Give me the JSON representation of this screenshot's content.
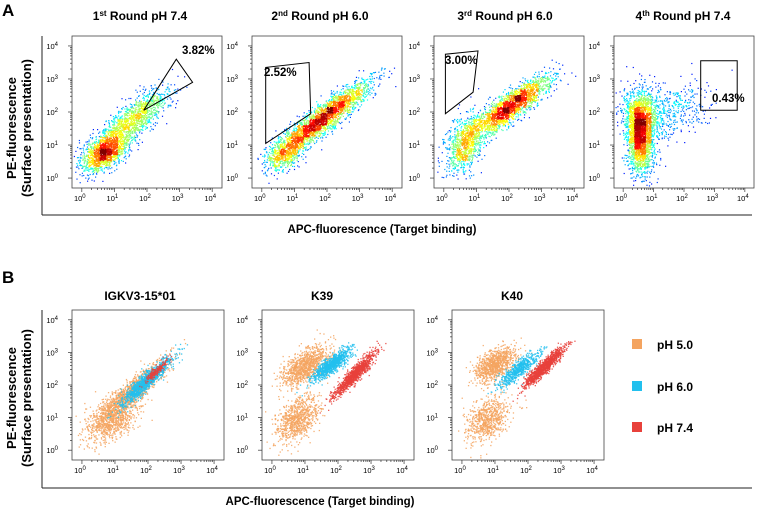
{
  "panels": [
    {
      "letter": "A"
    },
    {
      "letter": "B"
    }
  ],
  "tick_labels": [
    {
      "base": "10",
      "exp": "0"
    },
    {
      "base": "10",
      "exp": "1"
    },
    {
      "base": "10",
      "exp": "2"
    },
    {
      "base": "10",
      "exp": "3"
    },
    {
      "base": "10",
      "exp": "4"
    }
  ],
  "chart_data": [
    {
      "type": "scatter",
      "panel": "A",
      "title": "1st Round pH 7.4",
      "title_parts": {
        "pre": "1",
        "sup": "st",
        "post": " Round pH 7.4"
      },
      "xlabel": "APC-fluorescence (Target binding)",
      "ylabel": "PE-fluorescence (Surface presentation)",
      "xscale": "log",
      "yscale": "log",
      "xlim": [
        0.5,
        20000
      ],
      "ylim": [
        0.5,
        20000
      ],
      "coloring": "density",
      "clusters": [
        {
          "cx": 0.7,
          "cy": 0.8,
          "sx": 0.35,
          "sy": 0.3,
          "rho": 0.5,
          "n": 1300
        },
        {
          "cx": 1.4,
          "cy": 1.6,
          "sx": 0.55,
          "sy": 0.45,
          "rho": 0.75,
          "n": 1000
        },
        {
          "cx": 2.1,
          "cy": 2.3,
          "sx": 0.35,
          "sy": 0.3,
          "rho": 0.6,
          "n": 250
        }
      ],
      "gate": {
        "label": "3.82%",
        "vertices": [
          [
            1.9,
            2.05
          ],
          [
            3.4,
            2.9
          ],
          [
            2.9,
            3.6
          ]
        ]
      }
    },
    {
      "type": "scatter",
      "panel": "A",
      "title": "2nd Round pH 6.0",
      "title_parts": {
        "pre": "2",
        "sup": "nd",
        "post": " Round pH 6.0"
      },
      "xscale": "log",
      "yscale": "log",
      "xlim": [
        0.5,
        20000
      ],
      "ylim": [
        0.5,
        20000
      ],
      "coloring": "density",
      "clusters": [
        {
          "cx": 0.7,
          "cy": 0.8,
          "sx": 0.3,
          "sy": 0.28,
          "rho": 0.4,
          "n": 700
        },
        {
          "cx": 1.5,
          "cy": 1.5,
          "sx": 0.5,
          "sy": 0.35,
          "rho": 0.8,
          "n": 800
        },
        {
          "cx": 2.2,
          "cy": 2.1,
          "sx": 0.6,
          "sy": 0.45,
          "rho": 0.88,
          "n": 1500
        }
      ],
      "gate": {
        "label": "2.52%",
        "vertices": [
          [
            0.12,
            1.05
          ],
          [
            0.12,
            3.35
          ],
          [
            1.45,
            3.5
          ],
          [
            1.5,
            1.95
          ]
        ]
      }
    },
    {
      "type": "scatter",
      "panel": "A",
      "title": "3rd Round pH 6.0",
      "title_parts": {
        "pre": "3",
        "sup": "rd",
        "post": " Round pH 6.0"
      },
      "xscale": "log",
      "yscale": "log",
      "xlim": [
        0.5,
        20000
      ],
      "ylim": [
        0.5,
        20000
      ],
      "coloring": "density",
      "clusters": [
        {
          "cx": 0.6,
          "cy": 1.0,
          "sx": 0.3,
          "sy": 0.45,
          "rho": 0.4,
          "n": 800
        },
        {
          "cx": 1.5,
          "cy": 1.8,
          "sx": 0.5,
          "sy": 0.4,
          "rho": 0.8,
          "n": 600
        },
        {
          "cx": 2.2,
          "cy": 2.3,
          "sx": 0.55,
          "sy": 0.42,
          "rho": 0.85,
          "n": 1400
        }
      ],
      "gate": {
        "label": "3.00%",
        "vertices": [
          [
            0.05,
            1.95
          ],
          [
            0.05,
            3.75
          ],
          [
            1.05,
            3.85
          ],
          [
            0.9,
            2.6
          ],
          [
            0.05,
            1.95
          ]
        ]
      }
    },
    {
      "type": "scatter",
      "panel": "A",
      "title": "4th Round pH 7.4",
      "title_parts": {
        "pre": "4",
        "sup": "th",
        "post": " Round pH 7.4"
      },
      "xscale": "log",
      "yscale": "log",
      "xlim": [
        0.5,
        20000
      ],
      "ylim": [
        0.5,
        20000
      ],
      "coloring": "density",
      "clusters": [
        {
          "cx": 0.55,
          "cy": 1.3,
          "sx": 0.22,
          "sy": 0.6,
          "rho": 0.0,
          "n": 2200
        },
        {
          "cx": 0.55,
          "cy": 2.0,
          "sx": 0.35,
          "sy": 0.35,
          "rho": 0.0,
          "n": 600
        },
        {
          "cx": 1.6,
          "cy": 2.0,
          "sx": 0.6,
          "sy": 0.45,
          "rho": 0.3,
          "n": 400
        }
      ],
      "gate": {
        "label": "0.43%",
        "vertices": [
          [
            2.55,
            2.05
          ],
          [
            3.75,
            2.05
          ],
          [
            3.75,
            3.55
          ],
          [
            2.55,
            3.55
          ]
        ]
      }
    },
    {
      "type": "scatter",
      "panel": "B",
      "title": "IGKV3-15*01",
      "xscale": "log",
      "yscale": "log",
      "xlim": [
        0.5,
        20000
      ],
      "ylim": [
        0.5,
        20000
      ],
      "coloring": "series",
      "series": [
        {
          "name": "pH 5.0",
          "color": "#f4a460",
          "clusters": [
            {
              "cx": 0.9,
              "cy": 1.0,
              "sx": 0.4,
              "sy": 0.35,
              "rho": 0.5,
              "n": 900
            },
            {
              "cx": 1.5,
              "cy": 1.8,
              "sx": 0.5,
              "sy": 0.45,
              "rho": 0.9,
              "n": 1100
            }
          ]
        },
        {
          "name": "pH 6.0",
          "color": "#22c0ee",
          "clusters": [
            {
              "cx": 1.9,
              "cy": 2.1,
              "sx": 0.38,
              "sy": 0.36,
              "rho": 0.92,
              "n": 1100
            }
          ]
        },
        {
          "name": "pH 7.4",
          "color": "#e8413b",
          "clusters": [
            {
              "cx": 2.25,
              "cy": 2.45,
              "sx": 0.18,
              "sy": 0.18,
              "rho": 0.9,
              "n": 180
            }
          ]
        }
      ]
    },
    {
      "type": "scatter",
      "panel": "B",
      "title": "K39",
      "xscale": "log",
      "yscale": "log",
      "xlim": [
        0.5,
        20000
      ],
      "ylim": [
        0.5,
        20000
      ],
      "coloring": "series",
      "series": [
        {
          "name": "pH 5.0",
          "color": "#f4a460",
          "clusters": [
            {
              "cx": 0.75,
              "cy": 0.95,
              "sx": 0.32,
              "sy": 0.35,
              "rho": 0.4,
              "n": 800
            },
            {
              "cx": 1.0,
              "cy": 2.6,
              "sx": 0.35,
              "sy": 0.3,
              "rho": 0.6,
              "n": 1000
            }
          ]
        },
        {
          "name": "pH 6.0",
          "color": "#22c0ee",
          "clusters": [
            {
              "cx": 1.8,
              "cy": 2.65,
              "sx": 0.3,
              "sy": 0.25,
              "rho": 0.85,
              "n": 900
            }
          ]
        },
        {
          "name": "pH 7.4",
          "color": "#e8413b",
          "clusters": [
            {
              "cx": 2.5,
              "cy": 2.35,
              "sx": 0.3,
              "sy": 0.32,
              "rho": 0.92,
              "n": 1100
            }
          ]
        }
      ]
    },
    {
      "type": "scatter",
      "panel": "B",
      "title": "K40",
      "xscale": "log",
      "yscale": "log",
      "xlim": [
        0.5,
        20000
      ],
      "ylim": [
        0.5,
        20000
      ],
      "coloring": "series",
      "series": [
        {
          "name": "pH 5.0",
          "color": "#f4a460",
          "clusters": [
            {
              "cx": 0.75,
              "cy": 0.95,
              "sx": 0.32,
              "sy": 0.35,
              "rho": 0.4,
              "n": 700
            },
            {
              "cx": 1.0,
              "cy": 2.65,
              "sx": 0.3,
              "sy": 0.25,
              "rho": 0.5,
              "n": 900
            }
          ]
        },
        {
          "name": "pH 6.0",
          "color": "#22c0ee",
          "clusters": [
            {
              "cx": 1.7,
              "cy": 2.5,
              "sx": 0.3,
              "sy": 0.26,
              "rho": 0.85,
              "n": 600
            }
          ]
        },
        {
          "name": "pH 7.4",
          "color": "#e8413b",
          "clusters": [
            {
              "cx": 2.45,
              "cy": 2.55,
              "sx": 0.3,
              "sy": 0.3,
              "rho": 0.93,
              "n": 1100
            }
          ]
        }
      ]
    }
  ],
  "axis_labels": {
    "x_top": "APC-fluorescence (Target binding)",
    "x_bottom": "APC-fluorescence (Target binding)",
    "y_line1": "PE-fluorescence",
    "y_line2": "(Surface presentation)"
  },
  "legend": [
    {
      "label": "pH 5.0",
      "color": "#f4a460"
    },
    {
      "label": "pH 6.0",
      "color": "#22c0ee"
    },
    {
      "label": "pH 7.4",
      "color": "#e8413b"
    }
  ]
}
